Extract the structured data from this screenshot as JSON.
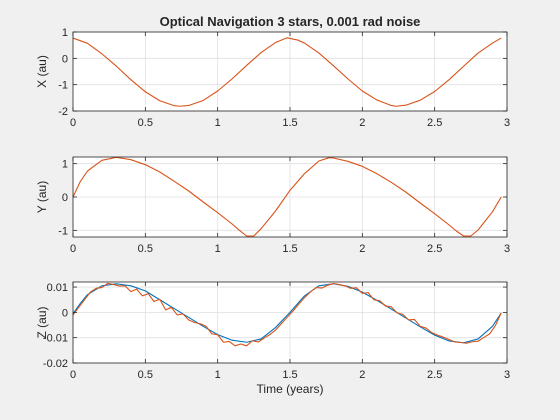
{
  "figure": {
    "title": "Optical Navigation 3 stars, 0.001 rad noise",
    "background": "#f0f0f0",
    "axes_background": "#ffffff",
    "grid_color": "#dfdfdf",
    "colors": {
      "truth": "#0072bd",
      "estimate": "#d95319"
    }
  },
  "chart_data": [
    {
      "type": "line",
      "title": "Optical Navigation 3 stars, 0.001 rad noise",
      "xlabel": "",
      "ylabel": "X (au)",
      "xlim": [
        0,
        3
      ],
      "ylim": [
        -2,
        1
      ],
      "xticks": [
        0,
        0.5,
        1,
        1.5,
        2,
        2.5,
        3
      ],
      "xtick_labels": [
        "0",
        "0.5",
        "1",
        "1.5",
        "2",
        "2.5",
        "3"
      ],
      "yticks": [
        -2,
        -1,
        0,
        1
      ],
      "ytick_labels": [
        "-2",
        "-1",
        "0",
        "1"
      ],
      "grid": true,
      "series": [
        {
          "color": "#d95319",
          "x": [
            0,
            0.1,
            0.2,
            0.3,
            0.4,
            0.5,
            0.6,
            0.7,
            0.74,
            0.8,
            0.9,
            1.0,
            1.1,
            1.2,
            1.3,
            1.4,
            1.48,
            1.55,
            1.6,
            1.7,
            1.8,
            1.9,
            2.0,
            2.1,
            2.2,
            2.23,
            2.3,
            2.4,
            2.5,
            2.6,
            2.7,
            2.8,
            2.9,
            2.96
          ],
          "y": [
            0.77,
            0.57,
            0.17,
            -0.3,
            -0.81,
            -1.27,
            -1.61,
            -1.8,
            -1.82,
            -1.79,
            -1.6,
            -1.24,
            -0.78,
            -0.27,
            0.22,
            0.6,
            0.78,
            0.7,
            0.58,
            0.2,
            -0.28,
            -0.78,
            -1.24,
            -1.58,
            -1.79,
            -1.82,
            -1.78,
            -1.59,
            -1.26,
            -0.81,
            -0.3,
            0.2,
            0.58,
            0.77
          ]
        }
      ]
    },
    {
      "type": "line",
      "xlabel": "",
      "ylabel": "Y (au)",
      "xlim": [
        0,
        3
      ],
      "ylim": [
        -1.2,
        1.2
      ],
      "xticks": [
        0,
        0.5,
        1,
        1.5,
        2,
        2.5,
        3
      ],
      "xtick_labels": [
        "0",
        "0.5",
        "1",
        "1.5",
        "2",
        "2.5",
        "3"
      ],
      "yticks": [
        -1,
        0,
        1
      ],
      "ytick_labels": [
        "-1",
        "0",
        "1"
      ],
      "grid": true,
      "series": [
        {
          "color": "#d95319",
          "x": [
            0,
            0.05,
            0.1,
            0.2,
            0.3,
            0.4,
            0.5,
            0.6,
            0.7,
            0.8,
            0.9,
            1.0,
            1.1,
            1.15,
            1.2,
            1.25,
            1.3,
            1.4,
            1.5,
            1.6,
            1.7,
            1.77,
            1.8,
            1.9,
            2.0,
            2.1,
            2.2,
            2.3,
            2.4,
            2.5,
            2.6,
            2.65,
            2.7,
            2.75,
            2.8,
            2.9,
            2.96
          ],
          "y": [
            0.0,
            0.46,
            0.78,
            1.1,
            1.19,
            1.12,
            0.97,
            0.75,
            0.47,
            0.18,
            -0.15,
            -0.47,
            -0.81,
            -1.0,
            -1.17,
            -1.17,
            -0.95,
            -0.42,
            0.2,
            0.7,
            1.08,
            1.18,
            1.17,
            1.07,
            0.92,
            0.7,
            0.44,
            0.15,
            -0.18,
            -0.5,
            -0.84,
            -1.02,
            -1.17,
            -1.17,
            -0.99,
            -0.44,
            0.0
          ]
        }
      ]
    },
    {
      "type": "line",
      "xlabel": "Time (years)",
      "ylabel": "Z (au)",
      "xlim": [
        0,
        3
      ],
      "ylim": [
        -0.02,
        0.012
      ],
      "xticks": [
        0,
        0.5,
        1,
        1.5,
        2,
        2.5,
        3
      ],
      "xtick_labels": [
        "0",
        "0.5",
        "1",
        "1.5",
        "2",
        "2.5",
        "3"
      ],
      "yticks": [
        -0.02,
        -0.01,
        0,
        0.01
      ],
      "ytick_labels": [
        "-0.02",
        "-0.01",
        "0",
        "0.01"
      ],
      "grid": true,
      "series": [
        {
          "color": "#0072bd",
          "x": [
            0,
            0.05,
            0.1,
            0.2,
            0.3,
            0.4,
            0.5,
            0.6,
            0.7,
            0.8,
            0.9,
            1.0,
            1.1,
            1.2,
            1.3,
            1.4,
            1.5,
            1.6,
            1.7,
            1.8,
            1.9,
            2.0,
            2.1,
            2.2,
            2.3,
            2.4,
            2.5,
            2.6,
            2.7,
            2.8,
            2.9,
            2.96
          ],
          "y": [
            -0.0005,
            0.0035,
            0.007,
            0.0105,
            0.0113,
            0.0105,
            0.0085,
            0.005,
            0.0015,
            -0.002,
            -0.0055,
            -0.0088,
            -0.011,
            -0.0118,
            -0.0105,
            -0.006,
            0.0,
            0.0065,
            0.0105,
            0.0113,
            0.0103,
            0.008,
            0.0048,
            0.0013,
            -0.0022,
            -0.0057,
            -0.009,
            -0.0113,
            -0.012,
            -0.0105,
            -0.0055,
            -0.0002
          ]
        },
        {
          "color": "#d95319",
          "x": [
            0,
            0.04,
            0.08,
            0.12,
            0.16,
            0.2,
            0.24,
            0.28,
            0.32,
            0.36,
            0.4,
            0.44,
            0.48,
            0.52,
            0.56,
            0.6,
            0.64,
            0.68,
            0.72,
            0.76,
            0.8,
            0.84,
            0.88,
            0.92,
            0.96,
            1.0,
            1.04,
            1.08,
            1.12,
            1.16,
            1.2,
            1.24,
            1.28,
            1.32,
            1.36,
            1.4,
            1.44,
            1.48,
            1.52,
            1.56,
            1.6,
            1.64,
            1.68,
            1.72,
            1.76,
            1.8,
            1.84,
            1.88,
            1.92,
            1.96,
            2.0,
            2.04,
            2.08,
            2.12,
            2.16,
            2.2,
            2.24,
            2.28,
            2.32,
            2.36,
            2.4,
            2.44,
            2.48,
            2.52,
            2.56,
            2.6,
            2.64,
            2.68,
            2.72,
            2.76,
            2.8,
            2.84,
            2.88,
            2.92,
            2.96
          ],
          "y": [
            -0.001,
            0.002,
            0.005,
            0.008,
            0.0095,
            0.0098,
            0.0115,
            0.011,
            0.0104,
            0.0105,
            0.0082,
            0.0092,
            0.0065,
            0.0074,
            0.0043,
            0.0052,
            0.001,
            0.002,
            -0.001,
            -0.0006,
            -0.003,
            -0.004,
            -0.0045,
            -0.0055,
            -0.0085,
            -0.0088,
            -0.0118,
            -0.0115,
            -0.0132,
            -0.0125,
            -0.0132,
            -0.0112,
            -0.0117,
            -0.0102,
            -0.0088,
            -0.007,
            -0.0045,
            -0.002,
            0.0005,
            0.0032,
            0.0058,
            0.008,
            0.0098,
            0.0096,
            0.0107,
            0.0114,
            0.011,
            0.0105,
            0.0095,
            0.0097,
            0.0075,
            0.0078,
            0.005,
            0.0046,
            0.0025,
            0.0022,
            -0.0002,
            -0.0008,
            -0.003,
            -0.0028,
            -0.0055,
            -0.0062,
            -0.008,
            -0.009,
            -0.0098,
            -0.0107,
            -0.0117,
            -0.0119,
            -0.0122,
            -0.0116,
            -0.0114,
            -0.0099,
            -0.0085,
            -0.0052,
            -0.0002
          ]
        }
      ]
    }
  ]
}
